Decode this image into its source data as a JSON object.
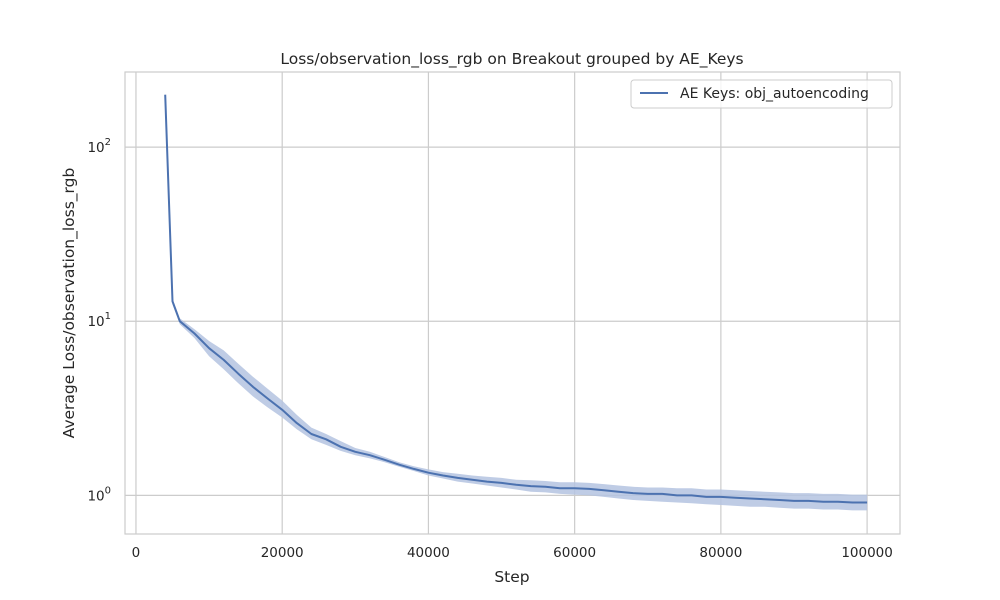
{
  "chart_data": {
    "type": "line",
    "title": "Loss/observation_loss_rgb on Breakout grouped by AE_Keys",
    "xlabel": "Step",
    "ylabel": "Average Loss/observation_loss_rgb",
    "xlim": [
      -1500,
      104500
    ],
    "ylim": [
      0.6,
      270
    ],
    "yscale": "log",
    "grid": true,
    "legend_position": "top-right",
    "x_ticks": [
      0,
      20000,
      40000,
      60000,
      80000,
      100000
    ],
    "x_tick_labels": [
      "0",
      "20000",
      "40000",
      "60000",
      "80000",
      "100000"
    ],
    "y_ticks": [
      1,
      10,
      100
    ],
    "y_tick_labels": [
      {
        "base": "10",
        "exp": "0"
      },
      {
        "base": "10",
        "exp": "1"
      },
      {
        "base": "10",
        "exp": "2"
      }
    ],
    "series": [
      {
        "name": "AE Keys: obj_autoencoding",
        "color": "#4c72b0",
        "band_color": "#b4c3e1",
        "x": [
          4000,
          5000,
          6000,
          8000,
          10000,
          12000,
          14000,
          16000,
          18000,
          20000,
          22000,
          24000,
          26000,
          28000,
          30000,
          32000,
          34000,
          36000,
          38000,
          40000,
          42000,
          44000,
          46000,
          48000,
          50000,
          52000,
          54000,
          56000,
          58000,
          60000,
          62000,
          64000,
          66000,
          68000,
          70000,
          72000,
          74000,
          76000,
          78000,
          80000,
          82000,
          84000,
          86000,
          88000,
          90000,
          92000,
          94000,
          96000,
          98000,
          100000
        ],
        "y": [
          200,
          13,
          10,
          8.5,
          7.0,
          6.0,
          5.0,
          4.2,
          3.6,
          3.1,
          2.6,
          2.25,
          2.1,
          1.9,
          1.78,
          1.7,
          1.6,
          1.5,
          1.42,
          1.35,
          1.3,
          1.26,
          1.23,
          1.2,
          1.18,
          1.15,
          1.13,
          1.12,
          1.1,
          1.1,
          1.09,
          1.07,
          1.05,
          1.03,
          1.02,
          1.02,
          1.0,
          1.0,
          0.98,
          0.98,
          0.97,
          0.96,
          0.95,
          0.94,
          0.93,
          0.93,
          0.92,
          0.92,
          0.91,
          0.91
        ],
        "y_lower": [
          198,
          12.5,
          9.6,
          8.0,
          6.3,
          5.3,
          4.4,
          3.7,
          3.2,
          2.8,
          2.4,
          2.1,
          1.95,
          1.8,
          1.7,
          1.63,
          1.55,
          1.46,
          1.38,
          1.3,
          1.25,
          1.2,
          1.17,
          1.14,
          1.11,
          1.08,
          1.05,
          1.04,
          1.02,
          1.01,
          1.0,
          0.98,
          0.96,
          0.94,
          0.93,
          0.92,
          0.91,
          0.9,
          0.89,
          0.88,
          0.87,
          0.86,
          0.86,
          0.85,
          0.84,
          0.84,
          0.83,
          0.83,
          0.82,
          0.82
        ],
        "y_upper": [
          202,
          13.5,
          10.4,
          9.0,
          7.7,
          6.8,
          5.7,
          4.8,
          4.1,
          3.5,
          2.9,
          2.45,
          2.25,
          2.05,
          1.87,
          1.78,
          1.66,
          1.55,
          1.47,
          1.41,
          1.36,
          1.33,
          1.3,
          1.28,
          1.26,
          1.23,
          1.22,
          1.21,
          1.19,
          1.19,
          1.18,
          1.16,
          1.14,
          1.12,
          1.11,
          1.11,
          1.1,
          1.1,
          1.08,
          1.08,
          1.07,
          1.06,
          1.05,
          1.04,
          1.03,
          1.03,
          1.02,
          1.02,
          1.01,
          1.01
        ]
      }
    ]
  }
}
